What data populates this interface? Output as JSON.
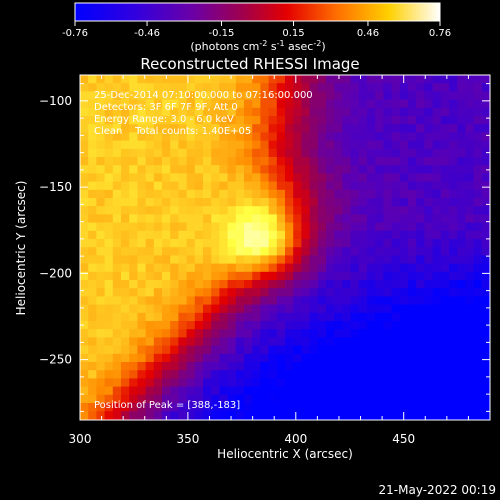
{
  "chart_data": {
    "type": "heatmap",
    "title": "Reconstructed RHESSI Image",
    "xlabel": "Heliocentric X (arcsec)",
    "ylabel": "Heliocentric Y (arcsec)",
    "xlim": [
      300,
      490
    ],
    "ylim": [
      -285,
      -85
    ],
    "x_ticks": [
      300,
      350,
      400,
      450
    ],
    "y_ticks": [
      -100,
      -150,
      -200,
      -250
    ],
    "colorbar": {
      "label": "(photons cm",
      "label_exp1": "-2",
      "label_s": " s",
      "label_exp2": "-1",
      "label_asec": " asec",
      "label_exp3": "-2",
      "label_end": ")",
      "range": [
        -0.76,
        0.76
      ],
      "ticks": [
        "-0.76",
        "-0.46",
        "-0.15",
        "0.15",
        "0.46",
        "0.76"
      ],
      "colors": [
        "#0000ff",
        "#5a00b4",
        "#9a0050",
        "#e30000",
        "#ff8c00",
        "#ffff40",
        "#ffffff"
      ]
    },
    "annotations": [
      "25-Dec-2014 07:10:00.000 to 07:16:00.000",
      "Detectors: 3F 6F 7F 9F, Att 0",
      "Energy Range: 3.0 - 6.0 keV",
      "Clean    Total counts: 1.40E+05"
    ],
    "peak_label": "Position of Peak = [388,-183]",
    "peak": [
      388,
      -183
    ],
    "footer_date": "21-May-2022 00:19"
  }
}
